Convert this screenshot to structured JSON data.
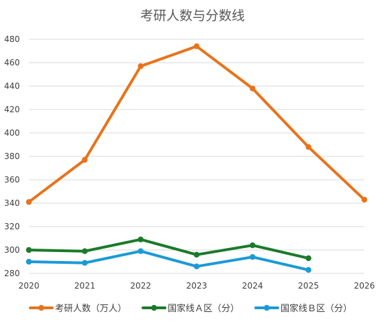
{
  "chart_data": {
    "type": "line",
    "title": "考研人数与分数线",
    "x": [
      "2020",
      "2021",
      "2022",
      "2023",
      "2024",
      "2025",
      "2026"
    ],
    "ylim": [
      280,
      480
    ],
    "yticks": [
      "280",
      "300",
      "320",
      "340",
      "360",
      "380",
      "400",
      "420",
      "440",
      "460",
      "480"
    ],
    "grid": true,
    "legend_position": "bottom",
    "series": [
      {
        "name": "考研人数（万人）",
        "color": "#e8731a",
        "values": [
          341,
          377,
          457,
          474,
          438,
          388,
          343
        ]
      },
      {
        "name": "国家线Ａ区（分）",
        "color": "#1a7a2a",
        "values": [
          300,
          299,
          309,
          296,
          304,
          293,
          null
        ]
      },
      {
        "name": "国家线Ｂ区（分）",
        "color": "#1b9ad6",
        "values": [
          290,
          289,
          299,
          286,
          294,
          283,
          null
        ]
      }
    ]
  }
}
